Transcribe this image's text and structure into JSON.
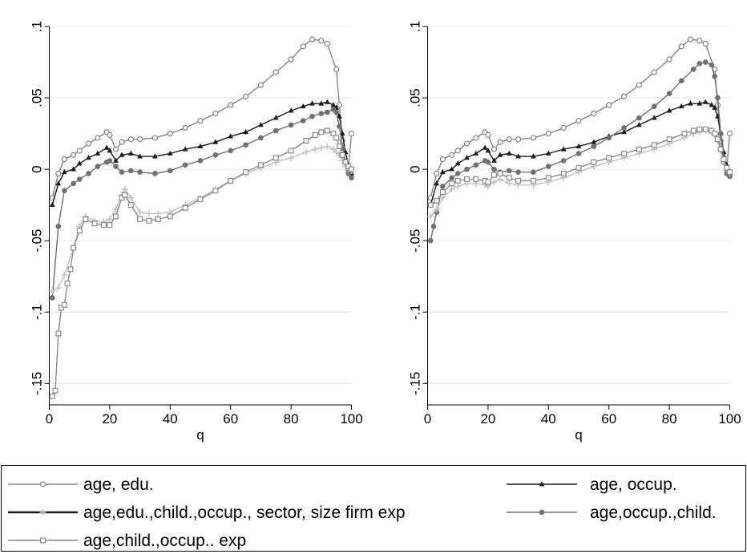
{
  "chart_data": [
    {
      "type": "line",
      "panel": "left",
      "xlabel": "q",
      "ylabel": "",
      "xlim": [
        0,
        100
      ],
      "ylim": [
        -0.165,
        0.1
      ],
      "xticks": [
        0,
        20,
        40,
        60,
        80,
        100
      ],
      "xtick_labels": [
        "0",
        "20",
        "40",
        "60",
        "80",
        "100"
      ],
      "yticks": [
        -0.15,
        -0.1,
        -0.05,
        0,
        0.05,
        0.1
      ],
      "ytick_labels": [
        "-.15",
        "-.1",
        "-.05",
        "0",
        ".05",
        ".1"
      ],
      "grid": true,
      "series": [
        {
          "key": "s1",
          "x": [
            1,
            3,
            5,
            8,
            10,
            13,
            16,
            19,
            20,
            22,
            24,
            27,
            30,
            35,
            40,
            45,
            50,
            55,
            60,
            65,
            70,
            75,
            80,
            84,
            87,
            90,
            92,
            95,
            96,
            97,
            98,
            99,
            100
          ],
          "y": [
            -0.02,
            -0.003,
            0.007,
            0.01,
            0.013,
            0.018,
            0.022,
            0.026,
            0.024,
            0.014,
            0.019,
            0.021,
            0.021,
            0.022,
            0.025,
            0.029,
            0.034,
            0.039,
            0.045,
            0.051,
            0.059,
            0.068,
            0.077,
            0.086,
            0.091,
            0.09,
            0.088,
            0.07,
            0.045,
            0.02,
            0.005,
            0.0,
            0.025
          ]
        },
        {
          "key": "s2",
          "x": [
            1,
            3,
            5,
            8,
            10,
            13,
            16,
            19,
            20,
            22,
            24,
            27,
            30,
            35,
            40,
            45,
            50,
            55,
            60,
            65,
            70,
            75,
            80,
            84,
            87,
            90,
            92,
            94,
            95,
            96,
            97,
            98,
            99,
            100
          ],
          "y": [
            -0.025,
            -0.01,
            -0.002,
            0.0,
            0.004,
            0.008,
            0.011,
            0.015,
            0.013,
            0.006,
            0.01,
            0.011,
            0.009,
            0.009,
            0.011,
            0.014,
            0.016,
            0.019,
            0.023,
            0.026,
            0.031,
            0.036,
            0.041,
            0.044,
            0.046,
            0.046,
            0.047,
            0.045,
            0.043,
            0.037,
            0.025,
            0.012,
            0.003,
            -0.003
          ]
        },
        {
          "key": "s3",
          "x": [
            1,
            3,
            5,
            8,
            10,
            13,
            16,
            19,
            20,
            22,
            24,
            27,
            30,
            35,
            40,
            45,
            50,
            55,
            60,
            65,
            70,
            75,
            80,
            84,
            87,
            90,
            92,
            94,
            95,
            96,
            97,
            98,
            99,
            100
          ],
          "y": [
            -0.09,
            -0.04,
            -0.015,
            -0.01,
            -0.007,
            -0.003,
            0.002,
            0.005,
            0.006,
            0.002,
            -0.002,
            -0.001,
            -0.002,
            -0.003,
            -0.001,
            0.003,
            0.006,
            0.01,
            0.013,
            0.017,
            0.022,
            0.027,
            0.031,
            0.034,
            0.037,
            0.039,
            0.04,
            0.042,
            0.04,
            0.03,
            0.015,
            0.005,
            -0.003,
            -0.006
          ]
        },
        {
          "key": "s4",
          "x": [
            1,
            3,
            5,
            8,
            10,
            12,
            15,
            18,
            20,
            22,
            24,
            25,
            27,
            30,
            33,
            36,
            40,
            45,
            50,
            55,
            60,
            65,
            70,
            75,
            80,
            85,
            88,
            90,
            92,
            94,
            95,
            96,
            97,
            98,
            99,
            100
          ],
          "y": [
            -0.085,
            -0.083,
            -0.074,
            -0.055,
            -0.04,
            -0.033,
            -0.036,
            -0.037,
            -0.035,
            -0.028,
            -0.018,
            -0.014,
            -0.02,
            -0.03,
            -0.031,
            -0.031,
            -0.03,
            -0.025,
            -0.02,
            -0.014,
            -0.008,
            -0.003,
            0.001,
            0.005,
            0.008,
            0.012,
            0.014,
            0.015,
            0.016,
            0.014,
            0.012,
            0.01,
            0.006,
            0.002,
            0.0,
            -0.001
          ]
        },
        {
          "key": "s5",
          "x": [
            1,
            2,
            3,
            4,
            5,
            6,
            7,
            8,
            10,
            12,
            15,
            18,
            20,
            22,
            24,
            25,
            27,
            30,
            33,
            36,
            40,
            45,
            50,
            55,
            60,
            65,
            70,
            75,
            80,
            85,
            88,
            90,
            92,
            94,
            95,
            96,
            97,
            98,
            99,
            100
          ],
          "y": [
            -0.159,
            -0.155,
            -0.115,
            -0.097,
            -0.095,
            -0.08,
            -0.07,
            -0.055,
            -0.043,
            -0.035,
            -0.038,
            -0.039,
            -0.039,
            -0.033,
            -0.02,
            -0.018,
            -0.025,
            -0.035,
            -0.036,
            -0.035,
            -0.033,
            -0.027,
            -0.021,
            -0.015,
            -0.008,
            -0.002,
            0.003,
            0.008,
            0.013,
            0.02,
            0.024,
            0.026,
            0.027,
            0.025,
            0.022,
            0.016,
            0.01,
            0.005,
            0.002,
            0.0
          ]
        }
      ]
    },
    {
      "type": "line",
      "panel": "right",
      "xlabel": "q",
      "ylabel": "",
      "xlim": [
        0,
        100
      ],
      "ylim": [
        -0.165,
        0.1
      ],
      "xticks": [
        0,
        20,
        40,
        60,
        80,
        100
      ],
      "xtick_labels": [
        "0",
        "20",
        "40",
        "60",
        "80",
        "100"
      ],
      "yticks": [
        -0.15,
        -0.1,
        -0.05,
        0,
        0.05,
        0.1
      ],
      "ytick_labels": [
        "-.15",
        "-.1",
        "-.05",
        "0",
        ".05",
        ".1"
      ],
      "grid": true,
      "series": [
        {
          "key": "s1",
          "x": [
            1,
            3,
            5,
            8,
            10,
            13,
            16,
            19,
            20,
            22,
            24,
            27,
            30,
            35,
            40,
            45,
            50,
            55,
            60,
            65,
            70,
            75,
            80,
            84,
            87,
            90,
            92,
            95,
            96,
            97,
            98,
            99,
            100
          ],
          "y": [
            -0.02,
            -0.003,
            0.007,
            0.01,
            0.013,
            0.018,
            0.022,
            0.026,
            0.024,
            0.014,
            0.019,
            0.021,
            0.021,
            0.022,
            0.025,
            0.029,
            0.034,
            0.039,
            0.045,
            0.051,
            0.059,
            0.068,
            0.077,
            0.086,
            0.091,
            0.09,
            0.088,
            0.07,
            0.045,
            0.02,
            0.005,
            0.0,
            0.025
          ]
        },
        {
          "key": "s2",
          "x": [
            1,
            3,
            5,
            8,
            10,
            13,
            16,
            19,
            20,
            22,
            24,
            27,
            30,
            35,
            40,
            45,
            50,
            55,
            60,
            65,
            70,
            75,
            80,
            84,
            87,
            90,
            92,
            94,
            95,
            96,
            97,
            98,
            99,
            100
          ],
          "y": [
            -0.025,
            -0.01,
            -0.002,
            0.0,
            0.004,
            0.008,
            0.011,
            0.015,
            0.013,
            0.006,
            0.01,
            0.011,
            0.009,
            0.009,
            0.011,
            0.014,
            0.016,
            0.019,
            0.023,
            0.026,
            0.031,
            0.036,
            0.041,
            0.044,
            0.046,
            0.046,
            0.047,
            0.045,
            0.043,
            0.037,
            0.025,
            0.012,
            0.003,
            -0.003
          ]
        },
        {
          "key": "s3",
          "x": [
            1,
            2,
            3,
            5,
            8,
            10,
            13,
            16,
            19,
            20,
            22,
            24,
            27,
            30,
            35,
            40,
            45,
            50,
            55,
            60,
            65,
            70,
            75,
            80,
            84,
            88,
            90,
            92,
            94,
            95,
            96,
            97,
            98,
            99,
            100
          ],
          "y": [
            -0.05,
            -0.04,
            -0.03,
            -0.012,
            -0.006,
            -0.003,
            0.0,
            0.003,
            0.006,
            0.005,
            0.0,
            -0.002,
            -0.001,
            -0.002,
            -0.002,
            0.002,
            0.006,
            0.011,
            0.016,
            0.022,
            0.029,
            0.036,
            0.044,
            0.053,
            0.062,
            0.07,
            0.074,
            0.075,
            0.073,
            0.065,
            0.05,
            0.025,
            0.008,
            -0.003,
            -0.005
          ]
        },
        {
          "key": "s4",
          "x": [
            1,
            3,
            5,
            8,
            10,
            13,
            16,
            19,
            20,
            22,
            24,
            27,
            30,
            35,
            40,
            45,
            50,
            55,
            60,
            65,
            70,
            75,
            80,
            85,
            88,
            90,
            92,
            94,
            95,
            96,
            97,
            98,
            99,
            100
          ],
          "y": [
            -0.033,
            -0.028,
            -0.02,
            -0.014,
            -0.012,
            -0.01,
            -0.01,
            -0.011,
            -0.012,
            -0.009,
            -0.007,
            -0.01,
            -0.011,
            -0.011,
            -0.009,
            -0.006,
            -0.002,
            0.002,
            0.005,
            0.008,
            0.011,
            0.014,
            0.018,
            0.022,
            0.025,
            0.026,
            0.027,
            0.026,
            0.024,
            0.02,
            0.013,
            0.006,
            0.0,
            -0.003
          ]
        },
        {
          "key": "s5",
          "x": [
            1,
            3,
            5,
            8,
            10,
            13,
            16,
            19,
            20,
            22,
            24,
            27,
            30,
            35,
            40,
            45,
            50,
            55,
            60,
            65,
            70,
            75,
            80,
            85,
            88,
            90,
            92,
            94,
            95,
            96,
            97,
            98,
            99,
            100
          ],
          "y": [
            -0.025,
            -0.022,
            -0.016,
            -0.01,
            -0.008,
            -0.007,
            -0.007,
            -0.008,
            -0.009,
            -0.004,
            -0.003,
            -0.006,
            -0.008,
            -0.008,
            -0.006,
            -0.003,
            0.001,
            0.005,
            0.008,
            0.011,
            0.014,
            0.017,
            0.021,
            0.025,
            0.027,
            0.028,
            0.028,
            0.027,
            0.025,
            0.021,
            0.014,
            0.007,
            0.001,
            -0.002
          ]
        }
      ]
    }
  ],
  "legend": {
    "placement": "bottom",
    "items": [
      {
        "key": "s1",
        "label": "age, edu."
      },
      {
        "key": "s2",
        "label": "age, occup."
      },
      {
        "key": "s4",
        "label": "age,edu.,child.,occup., sector, size firm exp"
      },
      {
        "key": "s3",
        "label": "age,occup.,child."
      },
      {
        "key": "s5",
        "label": "age,child.,occup.. exp"
      }
    ]
  },
  "styles": {
    "s1": {
      "color": "#858585",
      "marker": "hollow-circle",
      "line": "solid"
    },
    "s2": {
      "color": "#1a1a1a",
      "marker": "filled-triangle",
      "line": "solid"
    },
    "s3": {
      "color": "#707070",
      "marker": "filled-circle",
      "line": "solid"
    },
    "s4": {
      "color": "#c2c2c2",
      "marker": "plus",
      "line": "solid",
      "legend_line_color": "#1a1a1a"
    },
    "s5": {
      "color": "#8a8a8a",
      "marker": "hollow-square",
      "line": "solid"
    }
  },
  "colors": {
    "grid": "#e6e6e6",
    "axis": "#000000",
    "legend_border": "#000000",
    "background": "#ffffff"
  }
}
